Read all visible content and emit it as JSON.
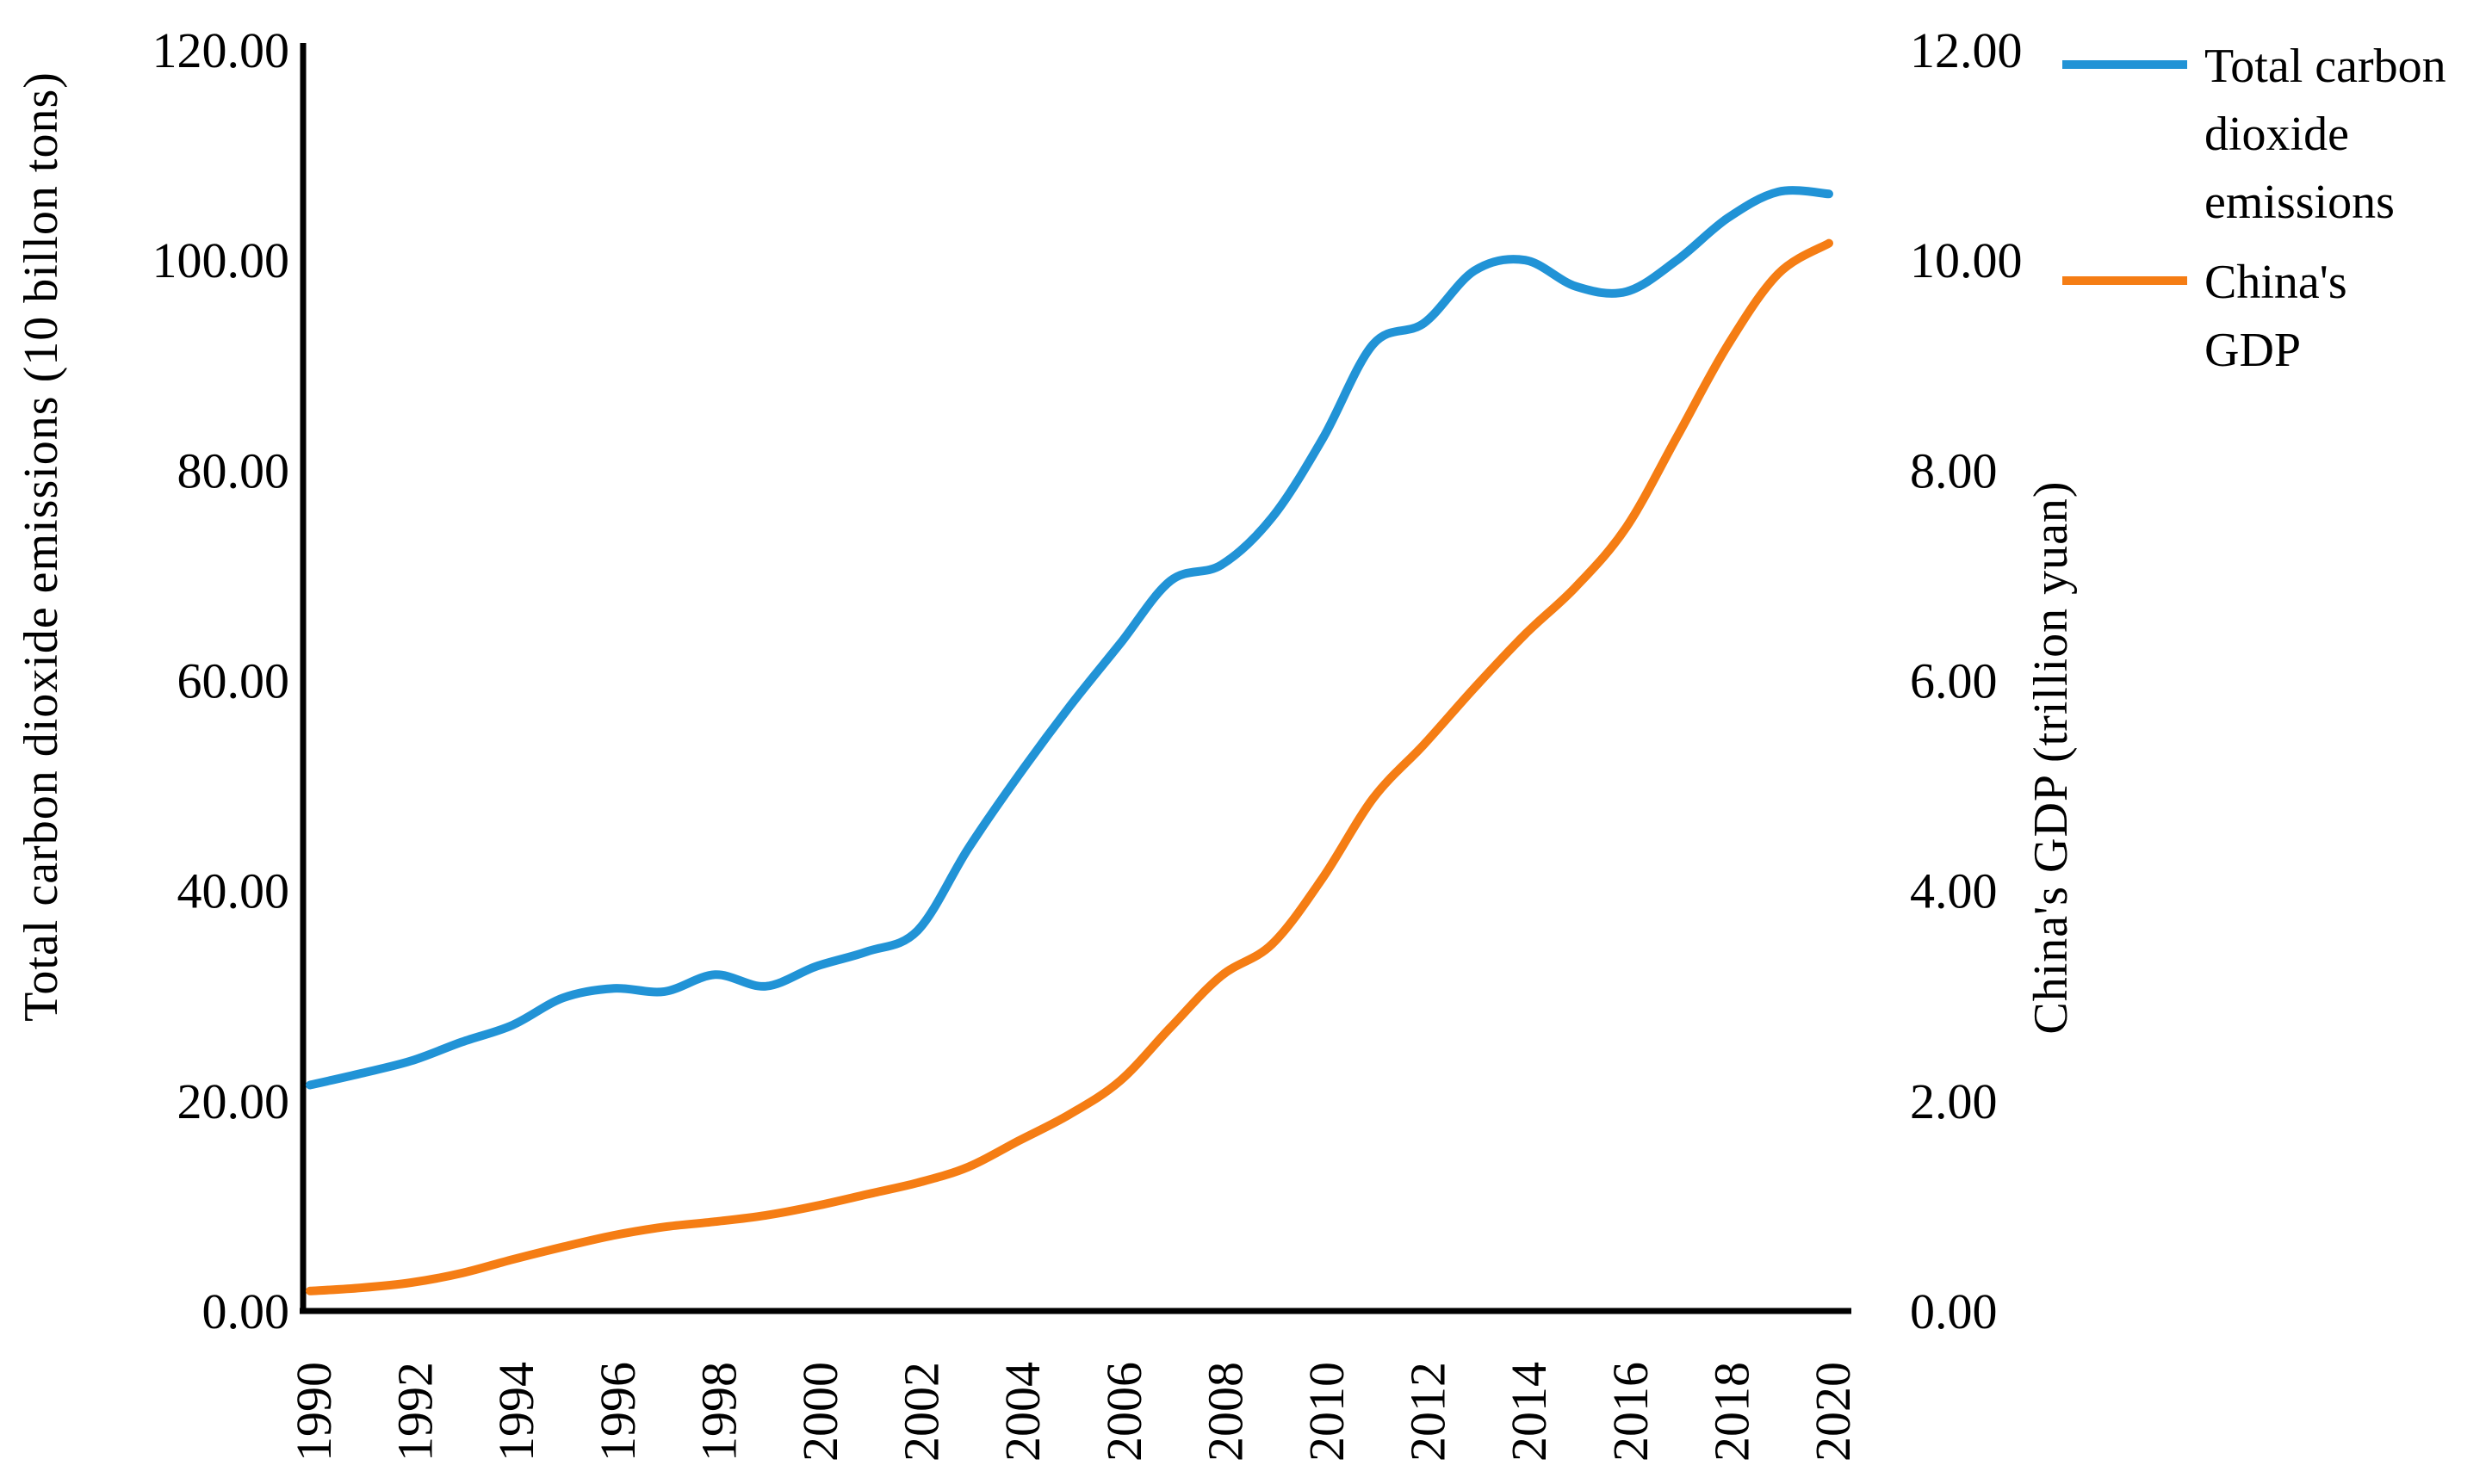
{
  "chart_data": {
    "type": "line",
    "title": "",
    "background": "#ffffff",
    "axis_color": "#000000",
    "text_color": "#000000",
    "grid": false,
    "legend_position": "right",
    "x": [
      1990,
      1991,
      1992,
      1993,
      1994,
      1995,
      1996,
      1997,
      1998,
      1999,
      2000,
      2001,
      2002,
      2003,
      2004,
      2005,
      2006,
      2007,
      2008,
      2009,
      2010,
      2011,
      2012,
      2013,
      2014,
      2015,
      2016,
      2017,
      2018,
      2019,
      2020
    ],
    "x_tick_labels": [
      "1990",
      "1992",
      "1994",
      "1996",
      "1998",
      "2000",
      "2002",
      "2004",
      "2006",
      "2008",
      "2010",
      "2012",
      "2014",
      "2016",
      "2018",
      "2020"
    ],
    "left_axis": {
      "label": "Total carbon dioxide emissions (10 billon tons)",
      "min": 0,
      "max": 120,
      "step": 20,
      "tick_labels": [
        "0.00",
        "20.00",
        "40.00",
        "60.00",
        "80.00",
        "100.00",
        "120.00"
      ]
    },
    "right_axis": {
      "label": "China's GDP (trillion yuan)",
      "min": 0,
      "max": 12,
      "step": 2,
      "tick_labels": [
        "0.00",
        "2.00",
        "4.00",
        "6.00",
        "8.00",
        "10.00",
        "12.00"
      ]
    },
    "series": [
      {
        "name": "Total carbon dioxide emissions",
        "legend_lines": [
          "Total carbon",
          "dioxide",
          "emissions"
        ],
        "axis": "left",
        "color": "#2193d6",
        "values": [
          21.5,
          22.6,
          23.8,
          25.6,
          27.2,
          29.8,
          30.7,
          30.4,
          32.0,
          30.9,
          32.8,
          34.2,
          36.2,
          44.0,
          51.0,
          57.5,
          63.5,
          69.5,
          71.0,
          75.5,
          83.0,
          92.0,
          94.0,
          99.0,
          100.0,
          97.5,
          97.0,
          100.0,
          104.0,
          106.5,
          106.3
        ]
      },
      {
        "name": "China's GDP",
        "legend_lines": [
          "China's",
          "GDP"
        ],
        "axis": "right",
        "color": "#f57d14",
        "values": [
          0.19,
          0.22,
          0.27,
          0.36,
          0.49,
          0.61,
          0.72,
          0.8,
          0.85,
          0.91,
          1.0,
          1.11,
          1.22,
          1.37,
          1.62,
          1.87,
          2.19,
          2.7,
          3.19,
          3.49,
          4.12,
          4.88,
          5.39,
          5.93,
          6.44,
          6.89,
          7.46,
          8.32,
          9.19,
          9.87,
          10.16
        ]
      }
    ]
  }
}
